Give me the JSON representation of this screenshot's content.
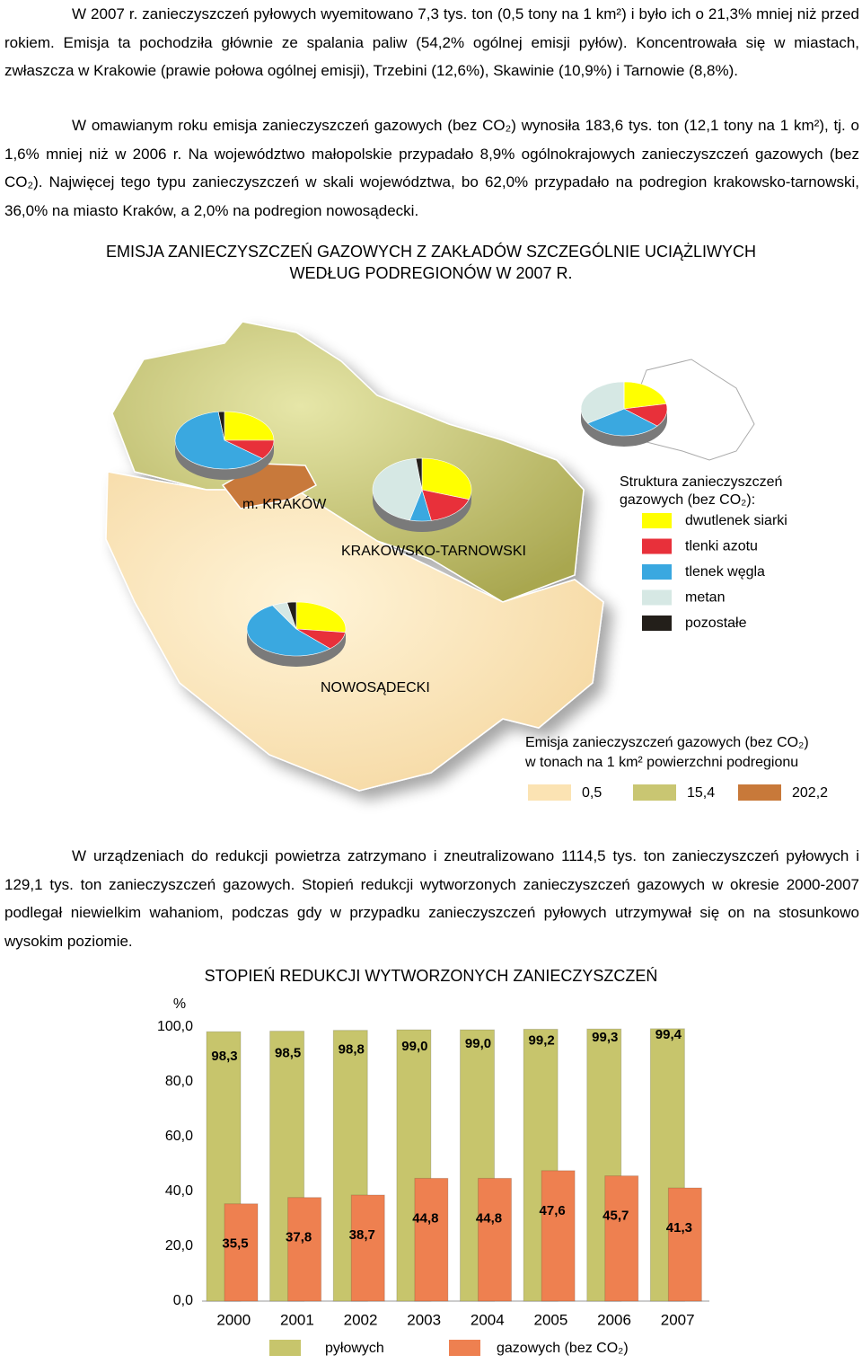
{
  "paragraphs": [
    "W 2007 r. zanieczyszczeń pyłowych wyemitowano 7,3 tys. ton (0,5 tony na 1 km²) i było ich o 21,3% mniej niż przed rokiem. Emisja ta pochodziła głównie ze spalania paliw (54,2% ogólnej emisji pyłów). Koncentrowała się w miastach, zwłaszcza w Krakowie (prawie połowa ogólnej emisji), Trzebini (12,6%), Skawinie (10,9%) i Tarnowie (8,8%).",
    "W omawianym roku emisja zanieczyszczeń gazowych (bez CO₂) wynosiła 183,6 tys. ton (12,1 tony na 1 km²), tj. o 1,6% mniej niż w 2006 r. Na województwo małopolskie przypadało 8,9% ogólnokrajowych zanieczyszczeń gazowych (bez CO₂). Najwięcej tego typu zanieczyszczeń w skali województwa, bo 62,0% przypadało na podregion krakowsko-tarnowski, 36,0% na miasto Kraków, a 2,0% na podregion nowosądecki.",
    "W urządzeniach do redukcji powietrza zatrzymano i zneutralizowano 1114,5 tys. ton zanieczyszczeń pyłowych i 129,1 tys. ton zanieczyszczeń gazowych. Stopień redukcji wytworzonych zanieczyszczeń gazowych w okresie 2000-2007 podlegał niewielkim wahaniom, podczas gdy w przypadku zanieczyszczeń pyłowych utrzymywał się on na stosunkowo wysokim poziomie."
  ],
  "figure_title": [
    "EMISJA ZANIECZYSZCZEŃ GAZOWYCH Z ZAKŁADÓW SZCZEGÓLNIE UCIĄŻLIWYCH",
    "WEDŁUG PODREGIONÓW W 2007 R."
  ],
  "map": {
    "type": "pie",
    "legend_title": [
      "Struktura zanieczyszczeń",
      "gazowych (bez CO₂):"
    ],
    "categories": [
      "dwutlenek siarki",
      "tlenki azotu",
      "tlenek węgla",
      "metan",
      "pozostałe"
    ],
    "colors": [
      "#ffff00",
      "#e8303a",
      "#3aa8e0",
      "#d6e8e4",
      "#231f1a"
    ],
    "pies": [
      {
        "name": "m. KRAKÓW",
        "values": [
          25,
          11,
          62,
          0,
          2
        ]
      },
      {
        "name": "KRAKOWSKO-TARNOWSKI",
        "values": [
          30,
          17,
          7,
          44,
          2
        ]
      },
      {
        "values": [
          22,
          14,
          30,
          34,
          0
        ]
      },
      {
        "name": "NOWOSĄDECKI",
        "values": [
          27,
          11,
          54,
          5,
          3
        ]
      }
    ],
    "density_title": [
      "Emisja zanieczyszczeń gazowych (bez CO₂)",
      "w tonach na 1 km² powierzchni podregionu"
    ],
    "density_labels": [
      "0,5",
      "15,4",
      "202,2"
    ],
    "density_colors": [
      "#fbe3b3",
      "#c9c672",
      "#c8793a"
    ]
  },
  "chart_data": {
    "type": "bar",
    "title": "STOPIEŃ REDUKCJI WYTWORZONYCH ZANIECZYSZCZEŃ",
    "y_label": "%",
    "categories": [
      "2000",
      "2001",
      "2002",
      "2003",
      "2004",
      "2005",
      "2006",
      "2007"
    ],
    "series": [
      {
        "name": "pyłowych",
        "color": "#c7c56c",
        "values": [
          98.3,
          98.5,
          98.8,
          99.0,
          99.0,
          99.2,
          99.3,
          99.4
        ],
        "value_labels": [
          "98,3",
          "98,5",
          "98,8",
          "99,0",
          "99,0",
          "99,2",
          "99,3",
          "99,4"
        ]
      },
      {
        "name": "gazowych (bez CO₂)",
        "color": "#ee8050",
        "values": [
          35.5,
          37.8,
          38.7,
          44.8,
          44.8,
          47.6,
          45.7,
          41.3
        ],
        "value_labels": [
          "35,5",
          "37,8",
          "38,7",
          "44,8",
          "44,8",
          "47,6",
          "45,7",
          "41,3"
        ]
      }
    ],
    "ylim": [
      0,
      100
    ],
    "yticks": [
      {
        "value": 0,
        "label": "0,0"
      },
      {
        "value": 20,
        "label": "20,0"
      },
      {
        "value": 40,
        "label": "40,0"
      },
      {
        "value": 60,
        "label": "60,0"
      },
      {
        "value": 80,
        "label": "80,0"
      },
      {
        "value": 100,
        "label": "100,0"
      }
    ],
    "grid": false
  }
}
